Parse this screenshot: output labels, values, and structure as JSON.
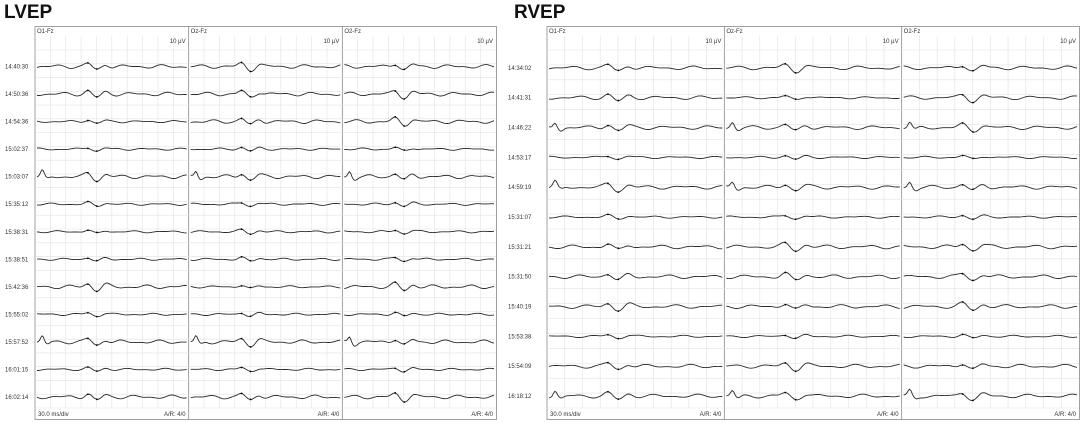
{
  "chart_data": [
    {
      "type": "line",
      "title": "LVEP",
      "channels": [
        "O1-Fz",
        "Oz-Fz",
        "O2-Fz"
      ],
      "scale_label": "10 µV",
      "timebase_label": "30.0 ms/div",
      "ar_label": "A/R: 4/0",
      "rows": [
        {
          "time": "14:40:30",
          "waves": [
            "wave-normal",
            "wave-normal",
            "wave-normal"
          ]
        },
        {
          "time": "14:50:36",
          "waves": [
            "wave-normal",
            "wave-normal",
            "wave-normal"
          ]
        },
        {
          "time": "14:54:36",
          "waves": [
            "wave-flat",
            "wave-normal",
            "wave-normal"
          ]
        },
        {
          "time": "15:02:37",
          "waves": [
            "wave-flat",
            "wave-flat",
            "wave-flat"
          ]
        },
        {
          "time": "15:03:07",
          "waves": [
            "wave-onset",
            "wave-onset",
            "wave-onset"
          ]
        },
        {
          "time": "15:35:12",
          "waves": [
            "wave-flat",
            "wave-flat",
            "wave-flat"
          ]
        },
        {
          "time": "15:38:31",
          "waves": [
            "wave-flat",
            "wave-flat",
            "wave-flat"
          ]
        },
        {
          "time": "15:38:51",
          "waves": [
            "wave-flat",
            "wave-flat",
            "wave-flat"
          ]
        },
        {
          "time": "15:42:36",
          "waves": [
            "wave-normal",
            "wave-flat",
            "wave-normal"
          ]
        },
        {
          "time": "15:55:02",
          "waves": [
            "wave-flat",
            "wave-flat",
            "wave-flat"
          ]
        },
        {
          "time": "15:57:52",
          "waves": [
            "wave-onset",
            "wave-onset",
            "wave-onset"
          ]
        },
        {
          "time": "16:01:15",
          "waves": [
            "wave-flat",
            "wave-flat",
            "wave-flat"
          ]
        },
        {
          "time": "16:02:14",
          "waves": [
            "wave-normal",
            "wave-normal",
            "wave-normal"
          ]
        }
      ]
    },
    {
      "type": "line",
      "title": "RVEP",
      "channels": [
        "O1-Fz",
        "Oz-Fz",
        "O2-Fz"
      ],
      "scale_label": "10 µV",
      "timebase_label": "30.0 ms/div",
      "ar_label": "A/R: 4/0",
      "rows": [
        {
          "time": "14:34:02",
          "waves": [
            "wave-normal",
            "wave-normal",
            "wave-normal"
          ]
        },
        {
          "time": "14:41:31",
          "waves": [
            "wave-normal",
            "wave-flat",
            "wave-normal"
          ]
        },
        {
          "time": "14:46:22",
          "waves": [
            "wave-onset",
            "wave-onset",
            "wave-onset"
          ]
        },
        {
          "time": "14:53:17",
          "waves": [
            "wave-flat",
            "wave-flat",
            "wave-flat"
          ]
        },
        {
          "time": "14:59:19",
          "waves": [
            "wave-onset",
            "wave-onset",
            "wave-onset"
          ]
        },
        {
          "time": "15:31:07",
          "waves": [
            "wave-flat",
            "wave-flat",
            "wave-flat"
          ]
        },
        {
          "time": "15:31:21",
          "waves": [
            "wave-normal",
            "wave-normal",
            "wave-normal"
          ]
        },
        {
          "time": "15:31:50",
          "waves": [
            "wave-normal",
            "wave-normal",
            "wave-normal"
          ]
        },
        {
          "time": "15:40:19",
          "waves": [
            "wave-normal",
            "wave-normal",
            "wave-normal"
          ]
        },
        {
          "time": "15:53:38",
          "waves": [
            "wave-flat",
            "wave-flat",
            "wave-flat"
          ]
        },
        {
          "time": "15:54:09",
          "waves": [
            "wave-normal",
            "wave-normal",
            "wave-normal"
          ]
        },
        {
          "time": "16:18:12",
          "waves": [
            "wave-onset",
            "wave-onset",
            "wave-onset"
          ]
        }
      ]
    }
  ],
  "colors": {
    "trace": "#2a2a2a",
    "grid": "#e2e2e2",
    "border": "#8a8a8a",
    "label": "#333333"
  }
}
